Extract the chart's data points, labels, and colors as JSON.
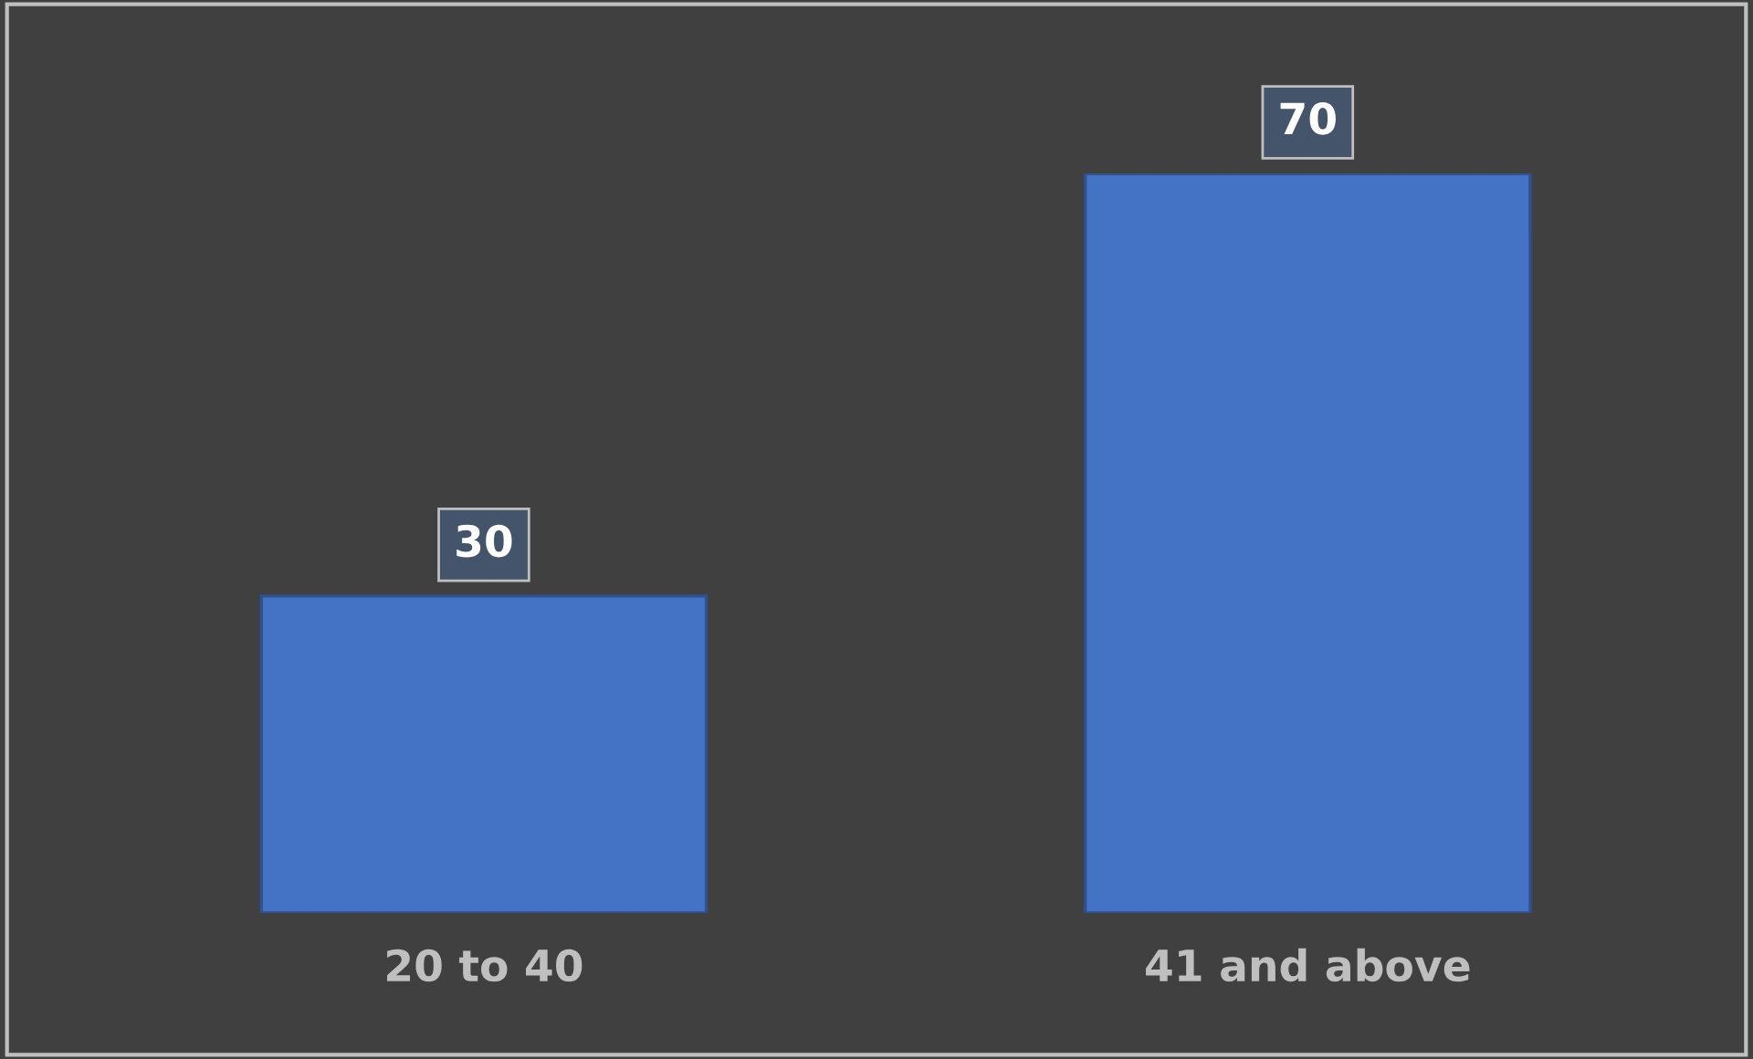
{
  "chart_data": {
    "type": "bar",
    "categories": [
      "20 to 40",
      "41 and above"
    ],
    "values": [
      30,
      70
    ],
    "color": "#4472c4",
    "data_labels": true,
    "grid": false,
    "legend": false
  }
}
